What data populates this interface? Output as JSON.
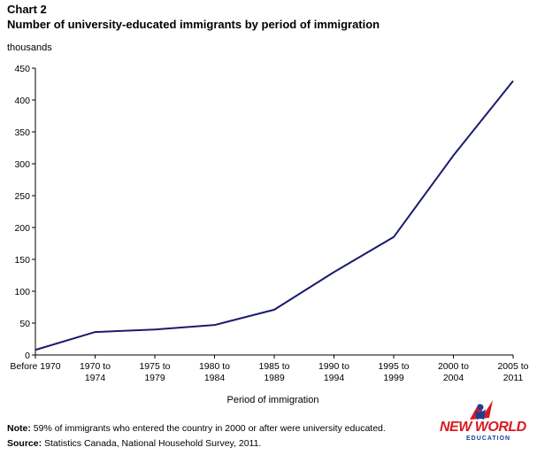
{
  "header": {
    "chart_label": "Chart 2",
    "title": "Number of university-educated immigrants by period of immigration",
    "y_unit": "thousands"
  },
  "chart_data": {
    "type": "line",
    "title": "Number of university-educated immigrants by period of immigration",
    "ylabel": "thousands",
    "xlabel": "Period of immigration",
    "categories": [
      [
        "Before 1970"
      ],
      [
        "1970 to",
        "1974"
      ],
      [
        "1975 to",
        "1979"
      ],
      [
        "1980 to",
        "1984"
      ],
      [
        "1985 to",
        "1989"
      ],
      [
        "1990 to",
        "1994"
      ],
      [
        "1995 to",
        "1999"
      ],
      [
        "2000 to",
        "2004"
      ],
      [
        "2005 to",
        "2011"
      ]
    ],
    "series": [
      {
        "values": [
          8,
          36,
          40,
          47,
          71,
          130,
          185,
          313,
          430
        ]
      }
    ],
    "ylim": [
      0,
      450
    ],
    "yticks": [
      0,
      50,
      100,
      150,
      200,
      250,
      300,
      350,
      400,
      450
    ],
    "grid": false,
    "colors": {
      "line": "#1b1b6e",
      "axis": "#000000"
    }
  },
  "footer": {
    "note_label": "Note:",
    "note_text": " 59% of immigrants who entered the country in 2000 or after were university educated.",
    "source_label": "Source:",
    "source_text": " Statistics Canada, National Household Survey, 2011."
  },
  "logo": {
    "text": "NEW WORLD",
    "subtext": "EDUCATION",
    "colors": {
      "red": "#d71920",
      "blue": "#1c3f94"
    }
  }
}
